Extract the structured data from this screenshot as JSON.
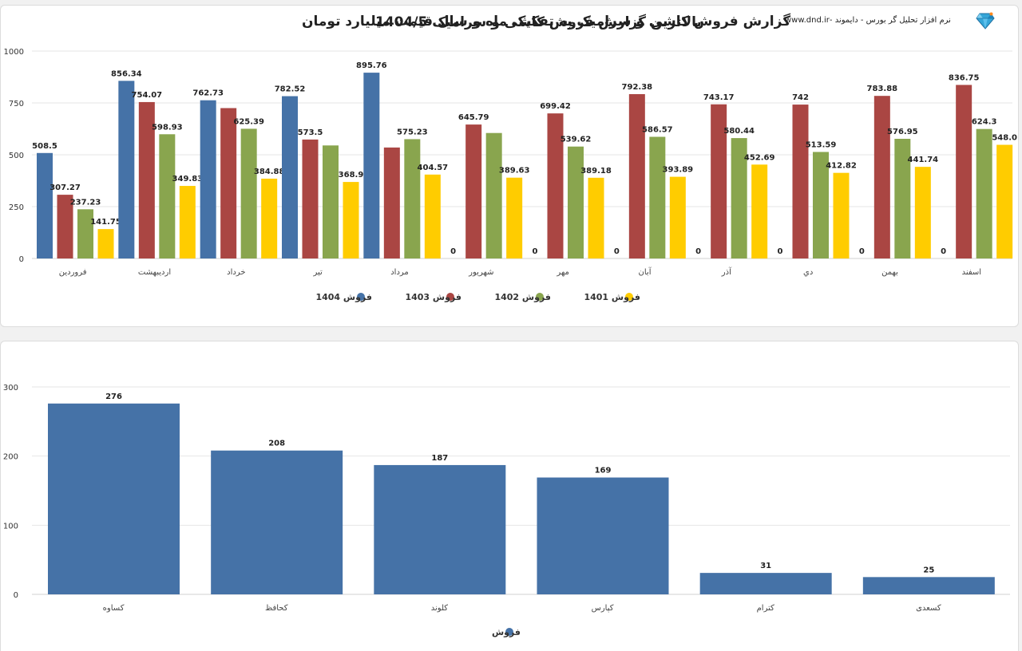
{
  "brand": {
    "text": "نرم افزار تحلیل گر بورس - دایموند -www.dnd.ir"
  },
  "colors": {
    "s1404": "#4572a7",
    "s1403": "#aa4643",
    "s1402": "#89a54e",
    "s1401": "#ffcc00"
  },
  "chart_data": [
    {
      "type": "bar",
      "title": "گزارش فروش کاشی و سرامیک به تفکیک ماه و سال قیمت میلیارد تومان",
      "categories": [
        "فروردین",
        "اردیبهشت",
        "خرداد",
        "تیر",
        "مرداد",
        "شهریور",
        "مهر",
        "آبان",
        "آذر",
        "دي",
        "بهمن",
        "اسفند"
      ],
      "series": [
        {
          "name": "فروش 1404",
          "color": "#4572a7",
          "values": [
            508.5,
            856.34,
            762.73,
            782.52,
            895.76,
            0,
            0,
            0,
            0,
            0,
            0,
            0
          ]
        },
        {
          "name": "فروش 1403",
          "color": "#aa4643",
          "values": [
            307.27,
            754.07,
            725,
            573.5,
            535,
            645.79,
            699.42,
            792.38,
            743.17,
            742,
            783.88,
            836.75
          ]
        },
        {
          "name": "فروش 1402",
          "color": "#89a54e",
          "values": [
            237.23,
            598.93,
            625.39,
            545,
            575.23,
            605,
            539.62,
            586.57,
            580.44,
            513.59,
            576.95,
            624.3
          ]
        },
        {
          "name": "فروش 1401",
          "color": "#ffcc00",
          "values": [
            141.75,
            349.83,
            384.88,
            368.9,
            404.57,
            389.63,
            389.18,
            393.89,
            452.69,
            412.82,
            441.74,
            548.0
          ]
        }
      ],
      "data_labels": [
        [
          "508.5",
          "856.34",
          "762.73",
          "782.52",
          "895.76",
          "0",
          "0",
          "0",
          "0",
          "0",
          "0",
          "0"
        ],
        [
          "307.27",
          "754.07",
          "",
          "573.5",
          "",
          "645.79",
          "699.42",
          "792.38",
          "743.17",
          "742",
          "783.88",
          "836.75"
        ],
        [
          "237.23",
          "598.93",
          "625.39",
          "",
          "575.23",
          "",
          "539.62",
          "586.57",
          "580.44",
          "513.59",
          "576.95",
          "624.3"
        ],
        [
          "141.75",
          "349.83",
          "384.88",
          "368.9",
          "404.57",
          "389.63",
          "389.18",
          "393.89",
          "452.69",
          "412.82",
          "441.74",
          "548.0"
        ]
      ],
      "yticks": [
        0,
        250,
        500,
        750,
        1000
      ],
      "ylim": [
        0,
        1000
      ],
      "legend_position": "bottom",
      "grid": true
    },
    {
      "type": "bar",
      "title": "بالاترین گزارش فروش کاشی و سرامیک 1404/5",
      "categories": [
        "کساوه",
        "کحافظ",
        "کلوند",
        "کپارس",
        "کترام",
        "کسعدی"
      ],
      "series": [
        {
          "name": "فروش",
          "color": "#4572a7",
          "values": [
            276,
            208,
            187,
            169,
            31,
            25
          ]
        }
      ],
      "yticks": [
        0,
        100,
        200,
        300
      ],
      "ylim": [
        0,
        300
      ],
      "legend_position": "bottom",
      "grid": true
    }
  ]
}
